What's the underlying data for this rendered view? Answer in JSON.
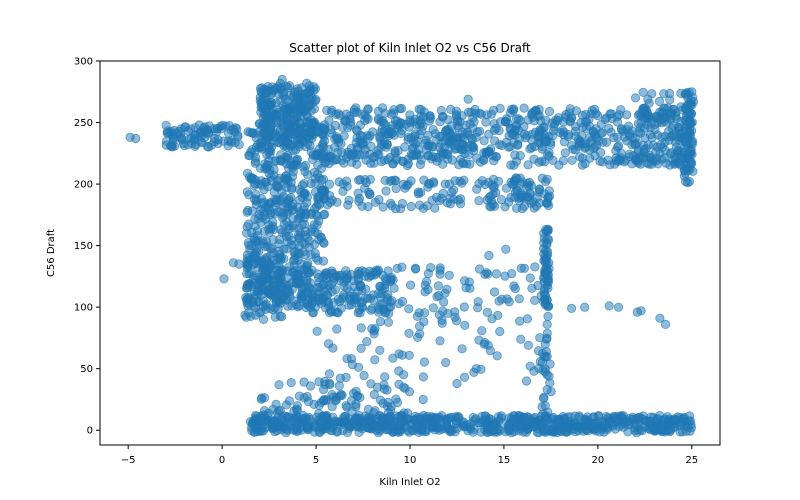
{
  "chart_data": {
    "type": "scatter",
    "title": "Scatter plot of Kiln Inlet O2 vs C56 Draft",
    "xlabel": "Kiln Inlet O2",
    "ylabel": "C56 Draft",
    "xlim": [
      -6.5,
      26.5
    ],
    "ylim": [
      -12,
      300
    ],
    "xticks": [
      -5,
      0,
      5,
      10,
      15,
      20,
      25
    ],
    "yticks": [
      0,
      50,
      100,
      150,
      200,
      250,
      300
    ],
    "grid": false,
    "marker_color": "#1f77b4",
    "marker_alpha": 0.5,
    "clusters": [
      {
        "x": [
          2,
          5
        ],
        "y": [
          230,
          280
        ],
        "n": 260
      },
      {
        "x": [
          1.3,
          5.5
        ],
        "y": [
          100,
          250
        ],
        "n": 520
      },
      {
        "x": [
          1.2,
          3.2
        ],
        "y": [
          90,
          140
        ],
        "n": 90
      },
      {
        "x": [
          4,
          9
        ],
        "y": [
          95,
          130
        ],
        "n": 160
      },
      {
        "x": [
          5,
          25
        ],
        "y": [
          215,
          262
        ],
        "n": 700
      },
      {
        "x": [
          5,
          16
        ],
        "y": [
          180,
          205
        ],
        "n": 120
      },
      {
        "x": [
          15.5,
          17.5
        ],
        "y": [
          180,
          205
        ],
        "n": 50
      },
      {
        "x": [
          -3,
          1
        ],
        "y": [
          230,
          248
        ],
        "n": 90
      },
      {
        "x": [
          1.5,
          25
        ],
        "y": [
          -2,
          12
        ],
        "n": 750
      },
      {
        "x": [
          2,
          10
        ],
        "y": [
          12,
          40
        ],
        "n": 80
      },
      {
        "x": [
          8,
          17
        ],
        "y": [
          85,
          135
        ],
        "n": 80
      },
      {
        "x": [
          17.1,
          17.4
        ],
        "y": [
          100,
          165
        ],
        "n": 60
      },
      {
        "x": [
          16.8,
          17.6
        ],
        "y": [
          0,
          100
        ],
        "n": 28
      },
      {
        "x": [
          5,
          15
        ],
        "y": [
          40,
          85
        ],
        "n": 45
      },
      {
        "x": [
          22,
          25
        ],
        "y": [
          215,
          275
        ],
        "n": 60
      },
      {
        "x": [
          24.6,
          25.1
        ],
        "y": [
          200,
          275
        ],
        "n": 60
      }
    ],
    "points": [
      [
        -4.9,
        238
      ],
      [
        -4.6,
        237
      ],
      [
        0.1,
        123
      ],
      [
        0.6,
        136
      ],
      [
        0.9,
        135
      ],
      [
        19.3,
        100
      ],
      [
        18.6,
        99
      ],
      [
        20.6,
        101
      ],
      [
        21.1,
        100
      ],
      [
        22.3,
        97
      ],
      [
        22.1,
        96
      ],
      [
        23.3,
        91
      ],
      [
        23.6,
        86
      ],
      [
        16.4,
        52
      ],
      [
        16.6,
        48
      ],
      [
        16.2,
        40
      ],
      [
        16.3,
        69
      ],
      [
        15.9,
        74
      ],
      [
        15.1,
        147
      ],
      [
        14.2,
        142
      ],
      [
        17.2,
        20
      ],
      [
        17.3,
        33
      ],
      [
        17.3,
        45
      ],
      [
        17.3,
        60
      ],
      [
        17.3,
        86
      ],
      [
        3.2,
        285
      ],
      [
        3.1,
        282
      ],
      [
        4.5,
        282
      ],
      [
        13.1,
        269
      ],
      [
        22.0,
        270
      ],
      [
        25.0,
        275
      ],
      [
        12.5,
        38
      ],
      [
        7.0,
        30
      ],
      [
        5.4,
        33
      ],
      [
        9.0,
        19
      ],
      [
        8.1,
        29
      ],
      [
        12.9,
        43
      ],
      [
        11.9,
        55
      ],
      [
        10.7,
        25
      ],
      [
        13.4,
        47
      ],
      [
        6.8,
        5
      ],
      [
        7.7,
        72
      ],
      [
        9.5,
        180
      ],
      [
        12.1,
        200
      ],
      [
        10.3,
        131
      ],
      [
        13.7,
        131
      ],
      [
        11.6,
        130
      ],
      [
        14.6,
        127
      ]
    ]
  }
}
